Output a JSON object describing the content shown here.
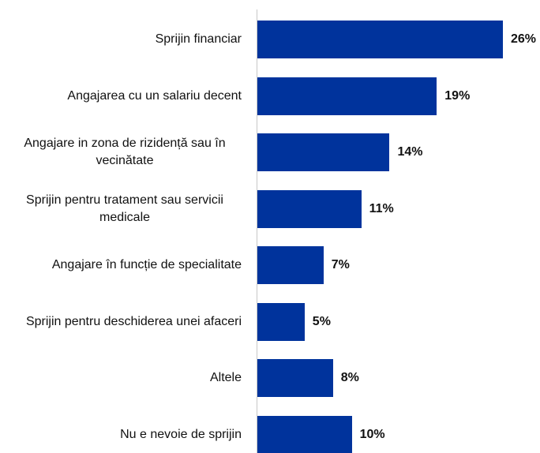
{
  "chart_data": {
    "type": "bar",
    "orientation": "horizontal",
    "categories": [
      "Sprijin financiar",
      "Angajarea cu un salariu decent",
      "Angajare in zona de rizidență sau în vecinătate",
      "Sprijin pentru tratament sau servicii medicale",
      "Angajare în funcție de specialitate",
      "Sprijin pentru deschiderea unei afaceri",
      "Altele",
      "Nu e nevoie de sprijin"
    ],
    "values": [
      26,
      19,
      14,
      11,
      7,
      5,
      8,
      10
    ],
    "value_labels": [
      "26%",
      "19%",
      "14%",
      "11%",
      "7%",
      "5%",
      "8%",
      "10%"
    ],
    "color": "#00339c"
  }
}
